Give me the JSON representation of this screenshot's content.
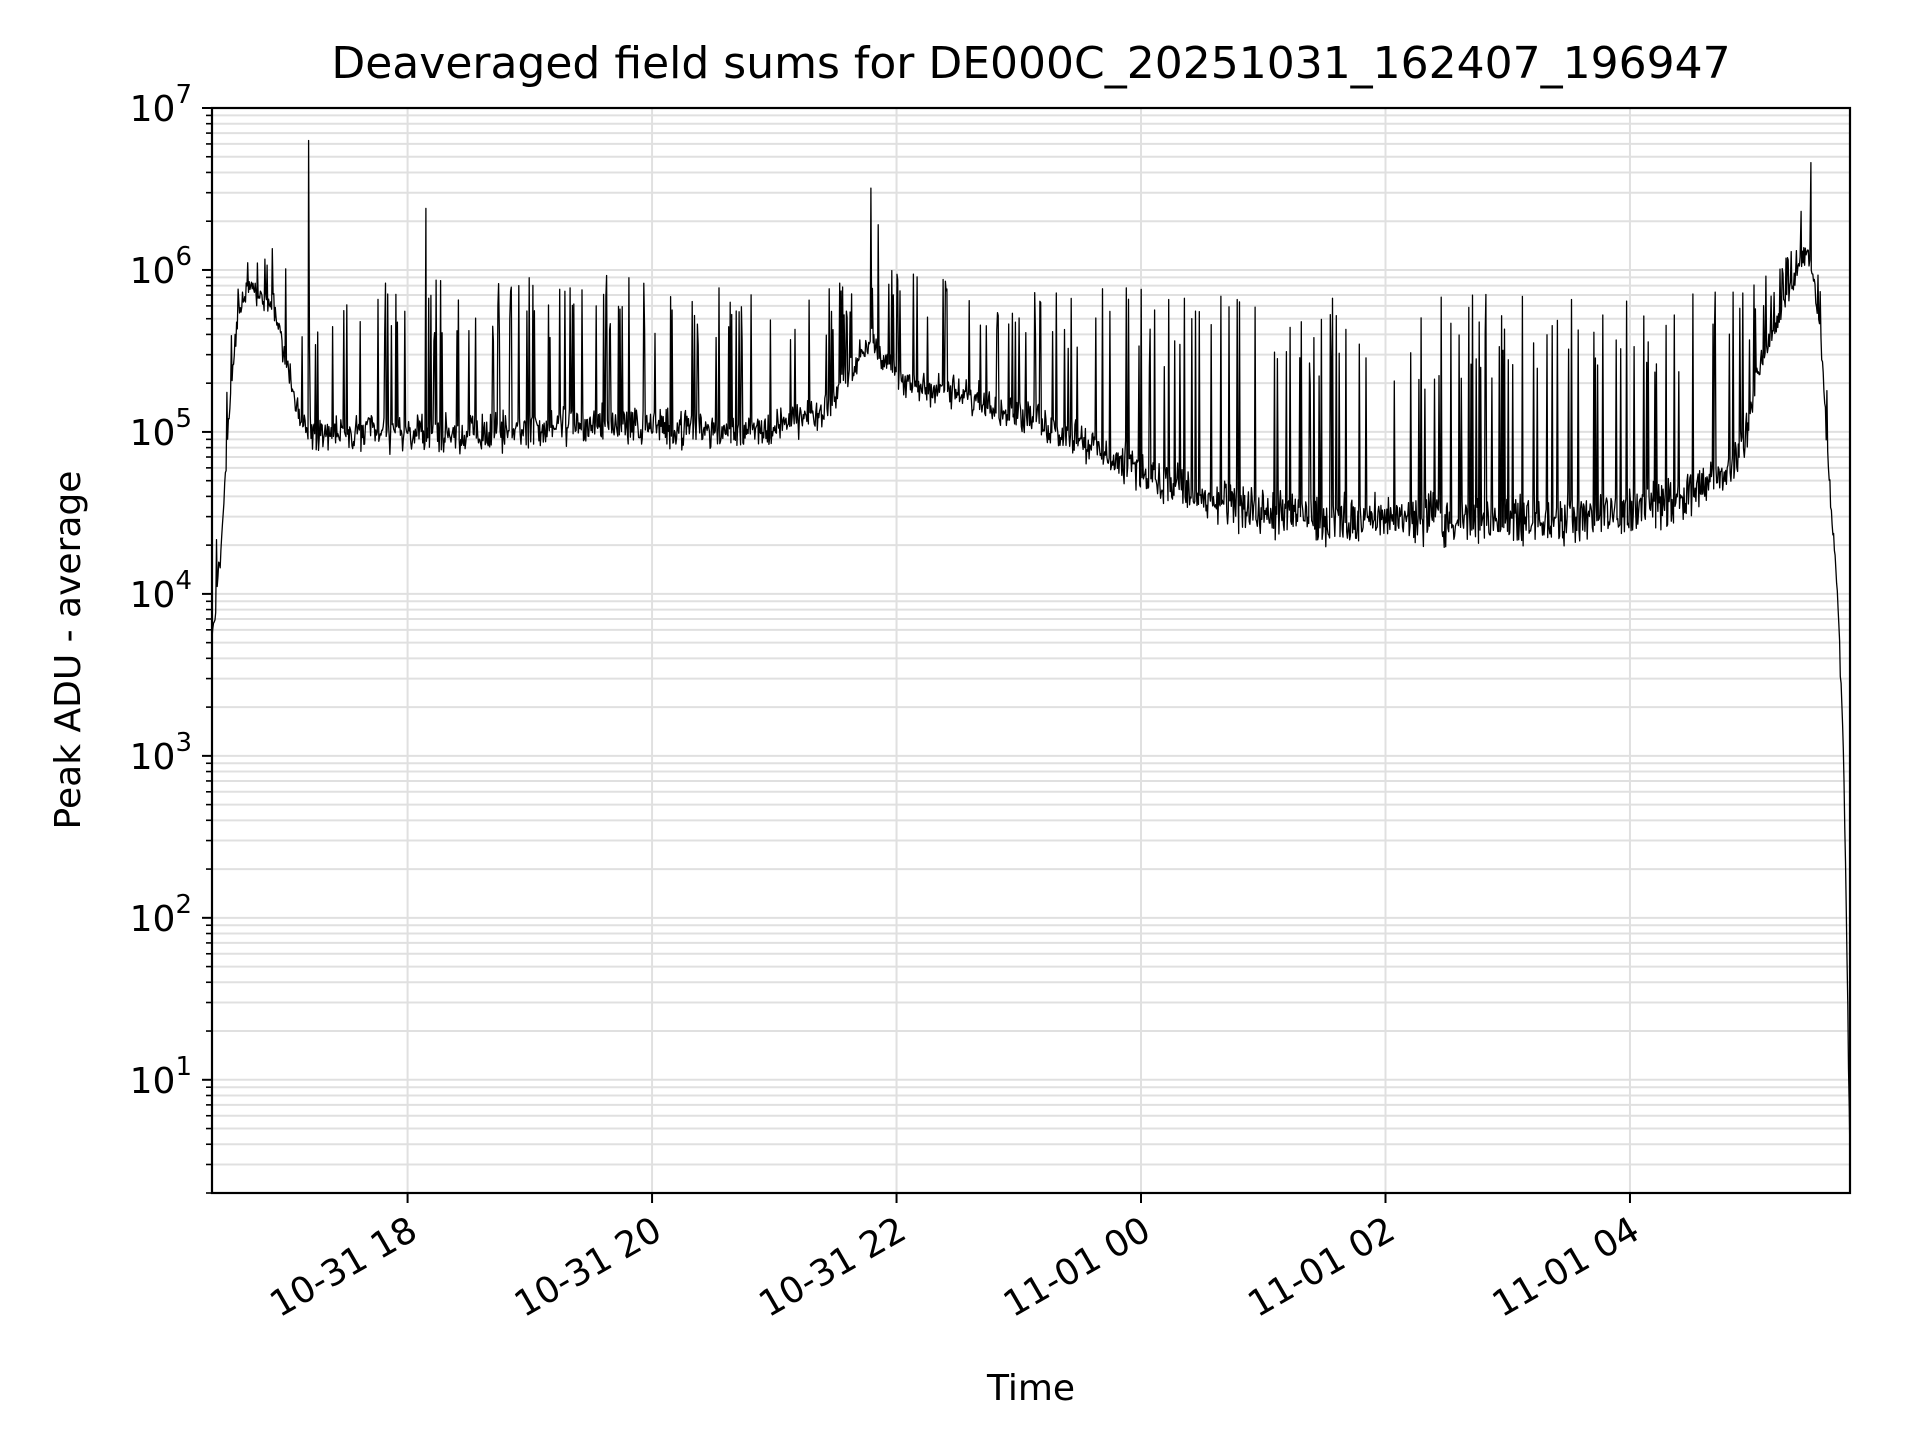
{
  "chart_data": {
    "type": "line",
    "title": "Deaveraged field sums for DE000C_20251031_162407_196947",
    "xlabel": "Time",
    "ylabel": "Peak ADU - average",
    "yscale": "log",
    "ylim": [
      2,
      10000000
    ],
    "xlim_hours": [
      16.4,
      29.8
    ],
    "x_ticks": [
      {
        "hour": 18,
        "label": "10-31 18"
      },
      {
        "hour": 20,
        "label": "10-31 20"
      },
      {
        "hour": 22,
        "label": "10-31 22"
      },
      {
        "hour": 24,
        "label": "11-01 00"
      },
      {
        "hour": 26,
        "label": "11-01 02"
      },
      {
        "hour": 28,
        "label": "11-01 04"
      }
    ],
    "y_ticks": [
      {
        "base": "10",
        "exp": "1",
        "value": 10
      },
      {
        "base": "10",
        "exp": "2",
        "value": 100
      },
      {
        "base": "10",
        "exp": "3",
        "value": 1000
      },
      {
        "base": "10",
        "exp": "4",
        "value": 10000
      },
      {
        "base": "10",
        "exp": "5",
        "value": 100000
      },
      {
        "base": "10",
        "exp": "6",
        "value": 1000000
      },
      {
        "base": "10",
        "exp": "7",
        "value": 10000000
      }
    ],
    "grid": true,
    "line_color": "#000000",
    "grid_color": "#e0e0e0",
    "series": [
      {
        "name": "Peak ADU - average",
        "envelope": [
          {
            "hour": 16.4,
            "base": 5000,
            "peak": 9000
          },
          {
            "hour": 16.45,
            "base": 10000,
            "peak": 60000
          },
          {
            "hour": 16.5,
            "base": 35000,
            "peak": 130000
          },
          {
            "hour": 16.55,
            "base": 150000,
            "peak": 500000
          },
          {
            "hour": 16.62,
            "base": 550000,
            "peak": 950000
          },
          {
            "hour": 16.7,
            "base": 750000,
            "peak": 1200000
          },
          {
            "hour": 16.8,
            "base": 650000,
            "peak": 1100000
          },
          {
            "hour": 16.9,
            "base": 600000,
            "peak": 1600000
          },
          {
            "hour": 17.0,
            "base": 250000,
            "peak": 1100000
          },
          {
            "hour": 17.1,
            "base": 120000,
            "peak": 700000
          },
          {
            "hour": 17.2,
            "base": 85000,
            "peak": 800000
          },
          {
            "hour": 17.5,
            "base": 80000,
            "peak": 900000
          },
          {
            "hour": 18.0,
            "base": 80000,
            "peak": 900000
          },
          {
            "hour": 18.5,
            "base": 80000,
            "peak": 950000
          },
          {
            "hour": 19.0,
            "base": 85000,
            "peak": 950000
          },
          {
            "hour": 19.5,
            "base": 95000,
            "peak": 950000
          },
          {
            "hour": 20.0,
            "base": 90000,
            "peak": 900000
          },
          {
            "hour": 20.5,
            "base": 85000,
            "peak": 850000
          },
          {
            "hour": 21.0,
            "base": 90000,
            "peak": 800000
          },
          {
            "hour": 21.4,
            "base": 110000,
            "peak": 800000
          },
          {
            "hour": 21.6,
            "base": 200000,
            "peak": 900000
          },
          {
            "hour": 21.8,
            "base": 350000,
            "peak": 1300000
          },
          {
            "hour": 22.0,
            "base": 180000,
            "peak": 1000000
          },
          {
            "hour": 22.5,
            "base": 150000,
            "peak": 900000
          },
          {
            "hour": 23.0,
            "base": 110000,
            "peak": 850000
          },
          {
            "hour": 23.5,
            "base": 75000,
            "peak": 800000
          },
          {
            "hour": 24.0,
            "base": 45000,
            "peak": 800000
          },
          {
            "hour": 24.5,
            "base": 30000,
            "peak": 750000
          },
          {
            "hour": 25.0,
            "base": 24000,
            "peak": 750000
          },
          {
            "hour": 25.5,
            "base": 22000,
            "peak": 750000
          },
          {
            "hour": 26.0,
            "base": 22000,
            "peak": 700000
          },
          {
            "hour": 26.5,
            "base": 22000,
            "peak": 700000
          },
          {
            "hour": 27.0,
            "base": 22000,
            "peak": 750000
          },
          {
            "hour": 27.5,
            "base": 22000,
            "peak": 750000
          },
          {
            "hour": 28.0,
            "base": 25000,
            "peak": 750000
          },
          {
            "hour": 28.5,
            "base": 32000,
            "peak": 800000
          },
          {
            "hour": 28.8,
            "base": 45000,
            "peak": 800000
          },
          {
            "hour": 28.95,
            "base": 80000,
            "peak": 800000
          },
          {
            "hour": 29.05,
            "base": 200000,
            "peak": 900000
          },
          {
            "hour": 29.2,
            "base": 450000,
            "peak": 1000000
          },
          {
            "hour": 29.35,
            "base": 900000,
            "peak": 1500000
          },
          {
            "hour": 29.45,
            "base": 1300000,
            "peak": 2000000
          },
          {
            "hour": 29.55,
            "base": 500000,
            "peak": 900000
          },
          {
            "hour": 29.62,
            "base": 60000,
            "peak": 150000
          },
          {
            "hour": 29.7,
            "base": 9000,
            "peak": 20000
          },
          {
            "hour": 29.75,
            "base": 800,
            "peak": 2000
          },
          {
            "hour": 29.78,
            "base": 30,
            "peak": 80
          },
          {
            "hour": 29.8,
            "base": 3,
            "peak": 5
          }
        ],
        "spikes": [
          {
            "hour": 17.19,
            "value": 6300000
          },
          {
            "hour": 18.15,
            "value": 2400000
          },
          {
            "hour": 21.79,
            "value": 3200000
          },
          {
            "hour": 21.85,
            "value": 1900000
          },
          {
            "hour": 29.48,
            "value": 4600000
          },
          {
            "hour": 29.4,
            "value": 2300000
          }
        ]
      }
    ]
  }
}
